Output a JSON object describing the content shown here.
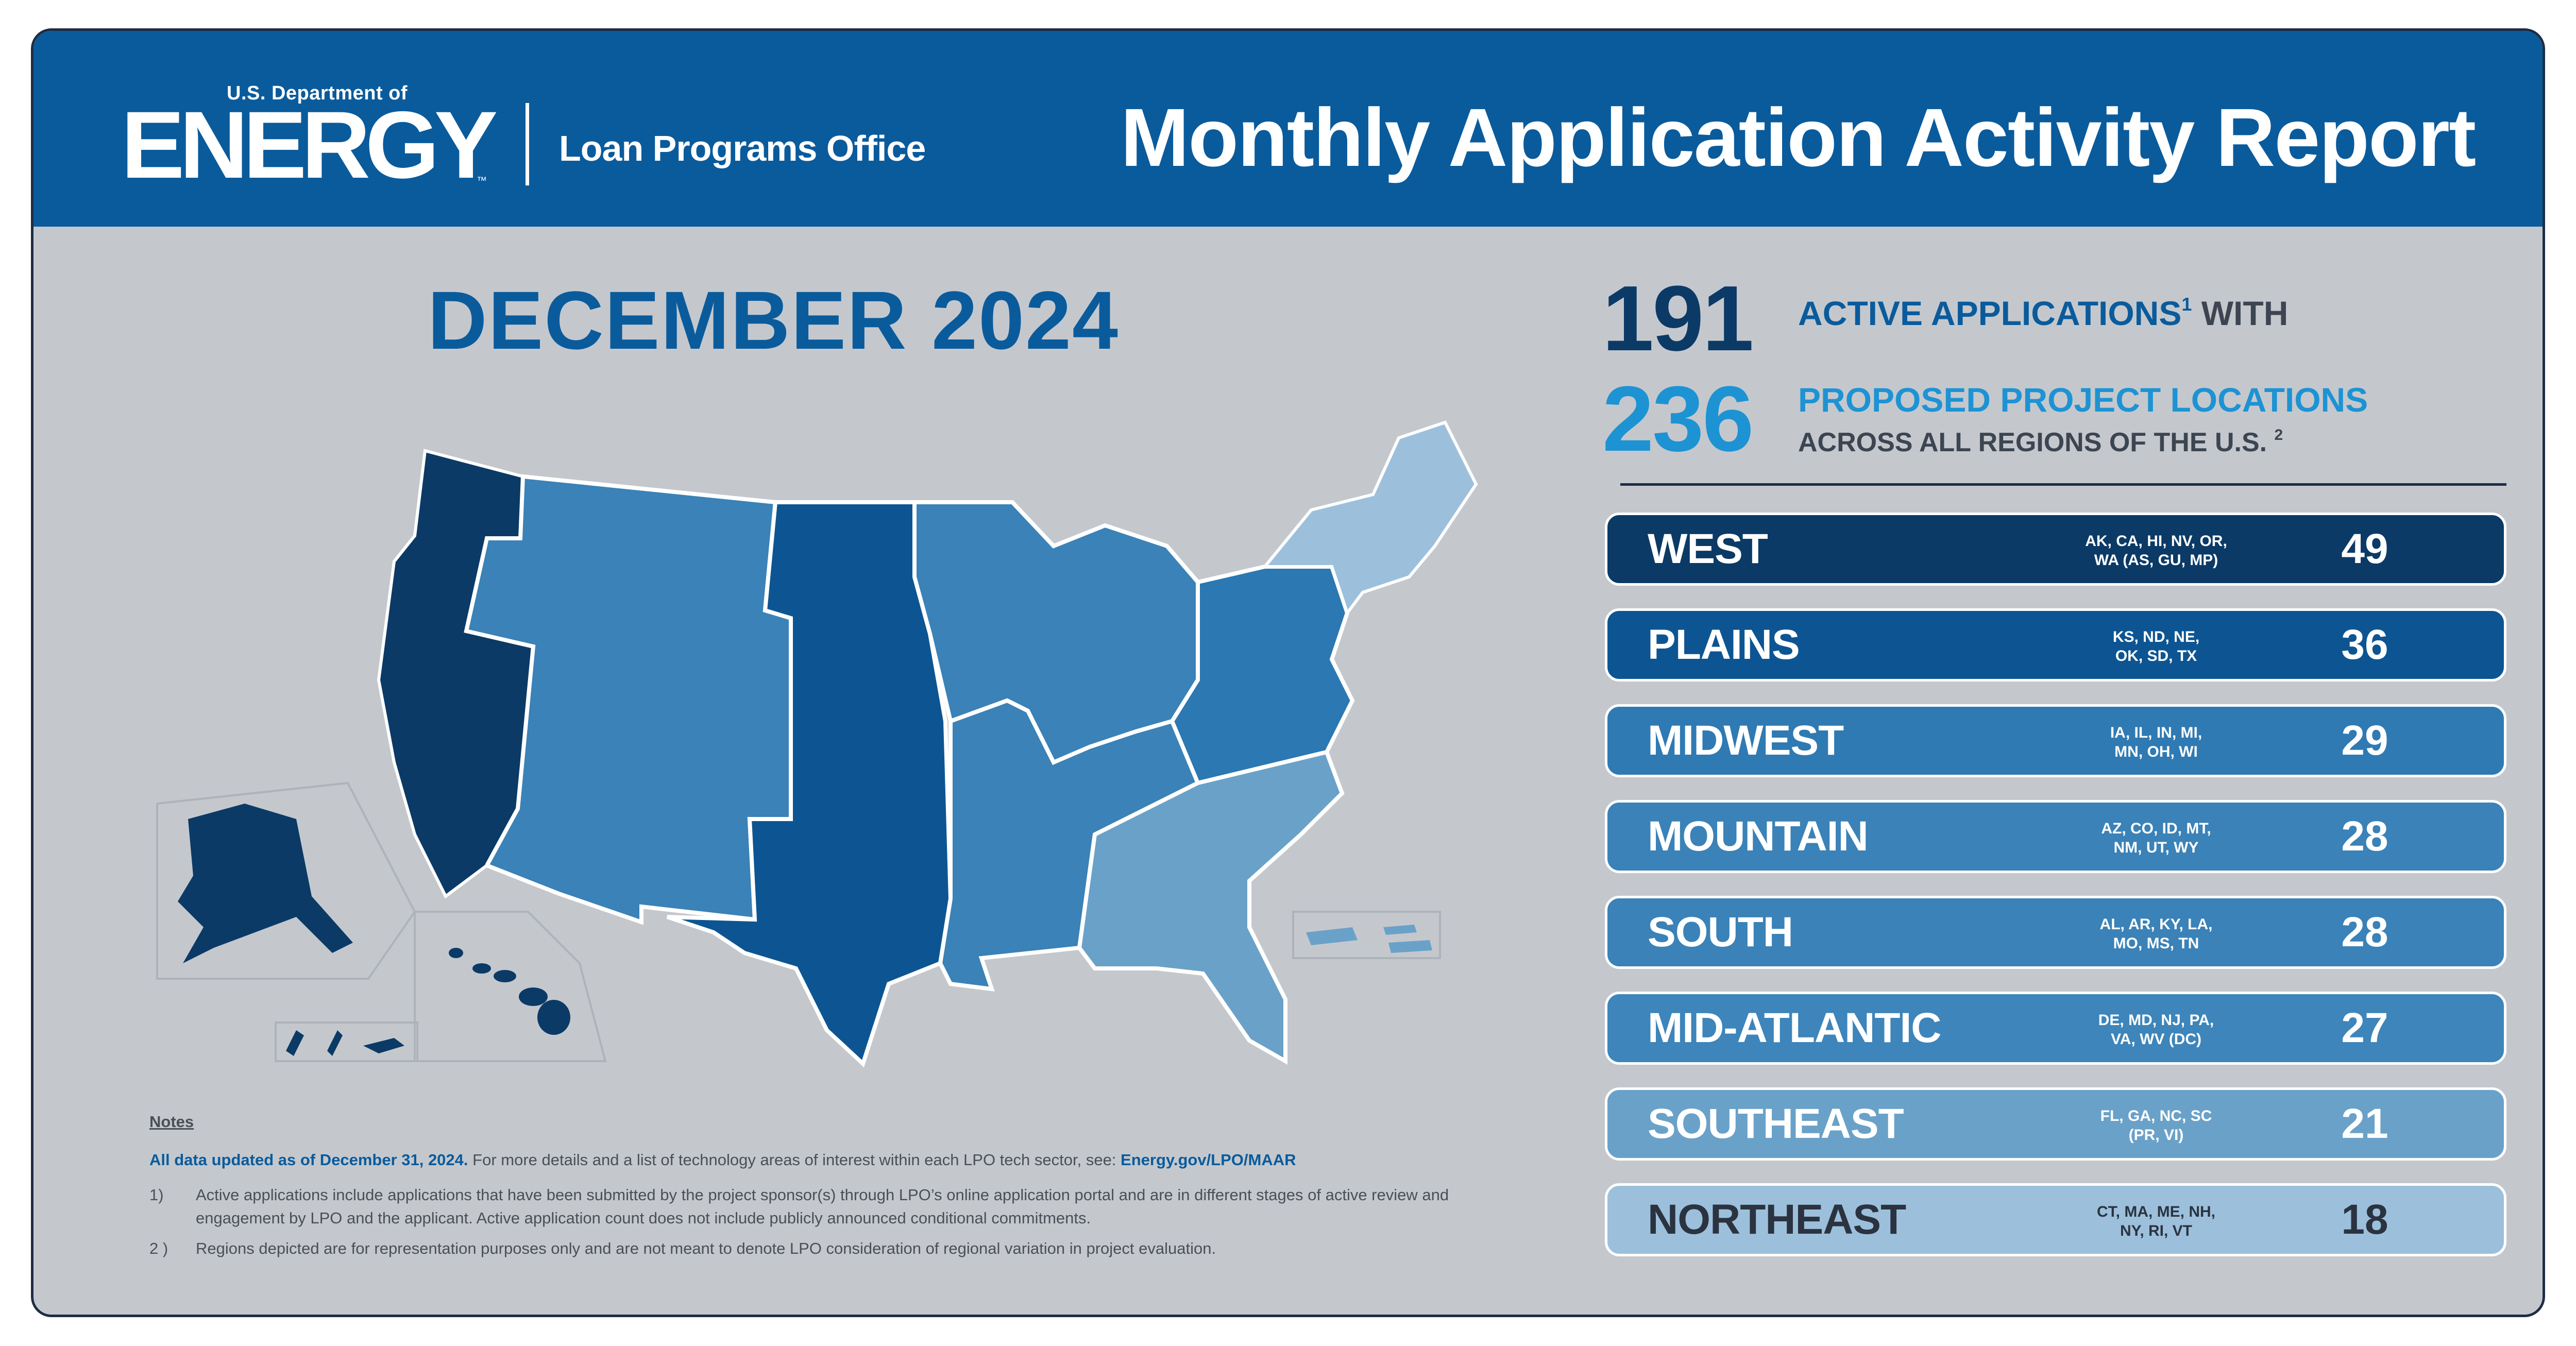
{
  "header": {
    "logo_dept": "U.S. Department of",
    "logo_name": "ENERGY",
    "logo_tm": "™",
    "office": "Loan Programs Office",
    "title": "Monthly Application Activity Report"
  },
  "report_month": "DECEMBER 2024",
  "stats": {
    "active_applications": "191",
    "active_label": "ACTIVE APPLICATIONS",
    "active_sup": "1",
    "with_label": "WITH",
    "project_locations": "236",
    "locations_label": "PROPOSED PROJECT LOCATIONS",
    "across_label": "ACROSS ALL REGIONS OF THE U.S.",
    "across_sup": "2"
  },
  "regions": [
    {
      "name": "WEST",
      "states_line1": "AK, CA, HI, NV, OR,",
      "states_line2": "WA (AS, GU, MP)",
      "count": "49",
      "color": "#0b3a66"
    },
    {
      "name": "PLAINS",
      "states_line1": "KS, ND, NE,",
      "states_line2": "OK, SD, TX",
      "count": "36",
      "color": "#0d5592"
    },
    {
      "name": "MIDWEST",
      "states_line1": "IA, IL, IN, MI,",
      "states_line2": "MN, OH, WI",
      "count": "29",
      "color": "#2f7ab3"
    },
    {
      "name": "MOUNTAIN",
      "states_line1": "AZ, CO, ID, MT,",
      "states_line2": "NM, UT, WY",
      "count": "28",
      "color": "#3a82b7"
    },
    {
      "name": "SOUTH",
      "states_line1": "AL, AR, KY, LA,",
      "states_line2": "MO, MS, TN",
      "count": "28",
      "color": "#3a82b7"
    },
    {
      "name": "MID-ATLANTIC",
      "states_line1": "DE, MD, NJ, PA,",
      "states_line2": "VA, WV (DC)",
      "count": "27",
      "color": "#3d85ba"
    },
    {
      "name": "SOUTHEAST",
      "states_line1": "FL, GA, NC, SC",
      "states_line2": "(PR, VI)",
      "count": "21",
      "color": "#6aa1c8"
    },
    {
      "name": "NORTHEAST",
      "states_line1": "CT, MA, ME, NH,",
      "states_line2": "NY, RI, VT",
      "count": "18",
      "color": "#9cc0dc"
    }
  ],
  "notes": {
    "heading": "Notes",
    "updated_bold": "All data updated as of December 31, 2024.",
    "updated_text": "For more details and a list of technology areas of interest within each LPO tech sector, see:",
    "updated_link": "Energy.gov/LPO/MAAR",
    "footnotes": [
      {
        "num": "1)",
        "text": "Active applications include applications that have been submitted by the project sponsor(s) through LPO’s online application portal and are in different stages of active review and engagement by LPO and the applicant. Active application count does not include publicly announced conditional commitments."
      },
      {
        "num": "2 )",
        "text": "Regions depicted are for representation purposes only and are not meant to denote LPO consideration of regional variation in project evaluation."
      }
    ]
  },
  "map_colors": {
    "west": "#0b3a66",
    "plains": "#0d5592",
    "midwest_mountain_south": "#2f7ab3",
    "mid_atlantic": "#2b78b2",
    "southeast": "#6aa1c8",
    "northeast": "#9cc0dc"
  }
}
